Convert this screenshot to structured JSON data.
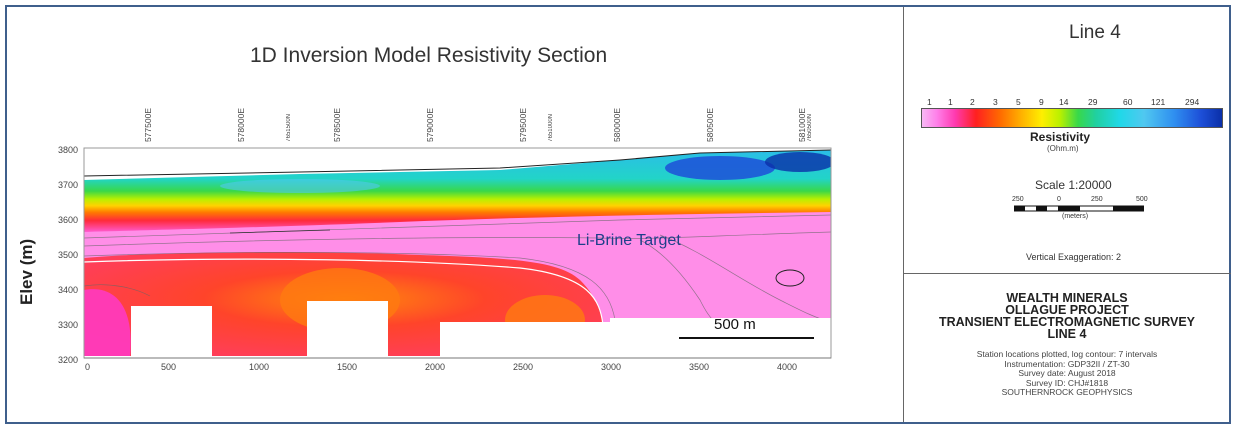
{
  "header": {
    "main_title": "1D Inversion Model Resistivity Section",
    "line_title": "Line 4"
  },
  "chart_data": {
    "type": "heatmap",
    "title": "1D Inversion Model Resistivity Section",
    "xlabel": "",
    "ylabel": "Elev (m)",
    "xlim": [
      0,
      4250
    ],
    "ylim": [
      3200,
      3800
    ],
    "x_ticks": [
      "0",
      "500",
      "1000",
      "1500",
      "2000",
      "2500",
      "3000",
      "3500",
      "4000"
    ],
    "y_ticks": [
      "3800",
      "3700",
      "3600",
      "3500",
      "3400",
      "3300",
      "3200"
    ],
    "stations": [
      {
        "label": "577500E",
        "x": 350,
        "small": false
      },
      {
        "label": "578000E",
        "x": 910,
        "small": false
      },
      {
        "label": "7651500N",
        "x": 1205,
        "small": true
      },
      {
        "label": "578500E",
        "x": 1470,
        "small": false
      },
      {
        "label": "579000E",
        "x": 2030,
        "small": false
      },
      {
        "label": "579500E",
        "x": 2590,
        "small": false
      },
      {
        "label": "7651000N",
        "x": 2705,
        "small": true
      },
      {
        "label": "580000E",
        "x": 3145,
        "small": false
      },
      {
        "label": "580500E",
        "x": 3705,
        "small": false
      },
      {
        "label": "581000E",
        "x": 4265,
        "small": false
      },
      {
        "label": "7650500N",
        "x": 4310,
        "small": true
      }
    ],
    "annotation": "Li-Brine Target",
    "scalebar_label": "500 m",
    "colorbar": {
      "title": "Resistivity",
      "unit": "(Ohm.m)",
      "ticks": [
        "1",
        "1",
        "2",
        "3",
        "5",
        "9",
        "14",
        "29",
        "60",
        "121",
        "294"
      ],
      "scale": "log"
    }
  },
  "legend": {
    "scale_title": "Scale 1:20000",
    "scale_ticks": [
      "250",
      "0",
      "250",
      "500"
    ],
    "scale_unit": "(meters)",
    "vertical_exaggeration": "Vertical Exaggeration: 2"
  },
  "info": {
    "company": "WEALTH MINERALS",
    "project": "OLLAGUE PROJECT",
    "survey_type": "TRANSIENT ELECTROMAGNETIC SURVEY",
    "line": "LINE 4",
    "notes": [
      "Station locations plotted, log contour: 7 intervals",
      "Instrumentation: GDP32II / ZT-30",
      "Survey date: August 2018",
      "Survey ID: CHJ#1818",
      "SOUTHERNROCK GEOPHYSICS"
    ]
  },
  "colors": {
    "frame": "#3f5f8c",
    "annotation": "#1e3f8a"
  }
}
